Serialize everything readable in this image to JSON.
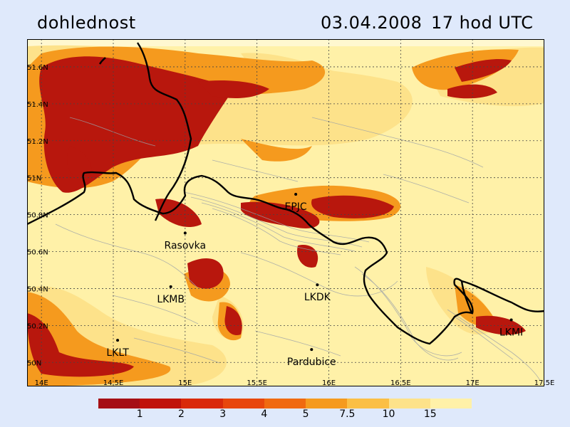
{
  "header": {
    "title": "dohlednost",
    "date": "03.04.2008",
    "time": "17 hod UTC"
  },
  "axes": {
    "lon_ticks": [
      "14E",
      "14.5E",
      "15E",
      "15.5E",
      "16E",
      "16.5E",
      "17E",
      "17.5E"
    ],
    "lat_ticks": [
      "50N",
      "50.2N",
      "50.4N",
      "50.6N",
      "50.8N",
      "51N",
      "51.2N",
      "51.4N",
      "51.6N"
    ],
    "lon_range": [
      13.9,
      17.5
    ],
    "lat_range": [
      49.87,
      51.75
    ]
  },
  "stations": [
    {
      "name": "EPJC",
      "lon": 15.77,
      "lat": 50.91
    },
    {
      "name": "Rasovka",
      "lon": 15.0,
      "lat": 50.7
    },
    {
      "name": "LKMB",
      "lon": 14.9,
      "lat": 50.41
    },
    {
      "name": "LKDK",
      "lon": 15.92,
      "lat": 50.42
    },
    {
      "name": "LKLT",
      "lon": 14.53,
      "lat": 50.12
    },
    {
      "name": "Pardubice",
      "lon": 15.88,
      "lat": 50.07
    },
    {
      "name": "LKMI",
      "lon": 17.27,
      "lat": 50.23
    }
  ],
  "legend": {
    "labels": [
      "1",
      "2",
      "3",
      "4",
      "5",
      "7.5",
      "10",
      "15"
    ],
    "colors": [
      "#a50f15",
      "#c0130a",
      "#d92a0a",
      "#e8470c",
      "#f06a10",
      "#f59a1e",
      "#fbbf45",
      "#fde28a",
      "#fff1a8"
    ]
  }
}
